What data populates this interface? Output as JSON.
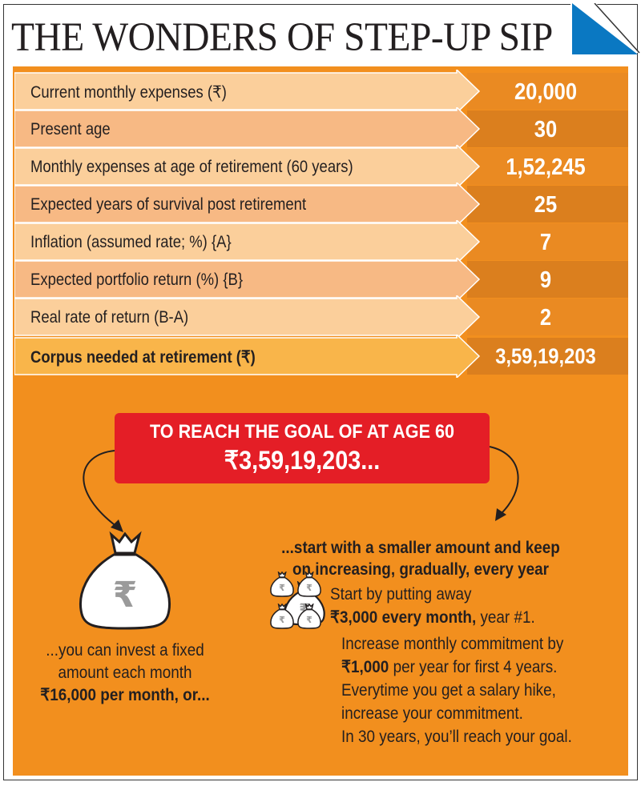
{
  "title": "THE WONDERS OF STEP-UP SIP",
  "rows": [
    {
      "label": "Current monthly expenses (₹)",
      "value": "20,000"
    },
    {
      "label": "Present age",
      "value": "30"
    },
    {
      "label": "Monthly expenses at age of retirement (60 years)",
      "value": "1,52,245"
    },
    {
      "label": "Expected years of survival post retirement",
      "value": "25"
    },
    {
      "label": "Inflation (assumed rate; %) {A}",
      "value": "7"
    },
    {
      "label": "Expected portfolio return (%) {B}",
      "value": "9"
    },
    {
      "label": "Real rate of return (B-A)",
      "value": "2"
    },
    {
      "label": "Corpus needed at retirement (₹)",
      "value": "3,59,19,203"
    }
  ],
  "goal": {
    "line1": "TO REACH THE GOAL OF AT AGE 60",
    "line2": "₹3,59,19,203..."
  },
  "left": {
    "line1": "...you can invest a fixed",
    "line2": "amount each month",
    "line3": "₹16,000 per month, or..."
  },
  "right": {
    "intro1": "...start with a smaller amount and keep",
    "intro2": "on increasing, gradually, every year",
    "step1a": "Start by putting away",
    "step1b_bold": "₹3,000 every month,",
    "step1b_rest": " year #1.",
    "step2a": "Increase monthly commitment by",
    "step2b_bold": "₹1,000",
    "step2b_rest": " per year for first 4 years.",
    "step3a": "Everytime you get a salary hike,",
    "step3b": "increase your commitment.",
    "step4": "In 30 years, you’ll reach your goal."
  },
  "rupee_symbol": "₹",
  "colors": {
    "panel": "#f28f1e",
    "row_light": "#fbcf9b",
    "row_dark": "#f7b984",
    "corpus": "#f9b54a",
    "value_a": "#ea8a22",
    "value_b": "#db7f1e",
    "red": "#e41e26",
    "blue": "#0a78c2"
  }
}
